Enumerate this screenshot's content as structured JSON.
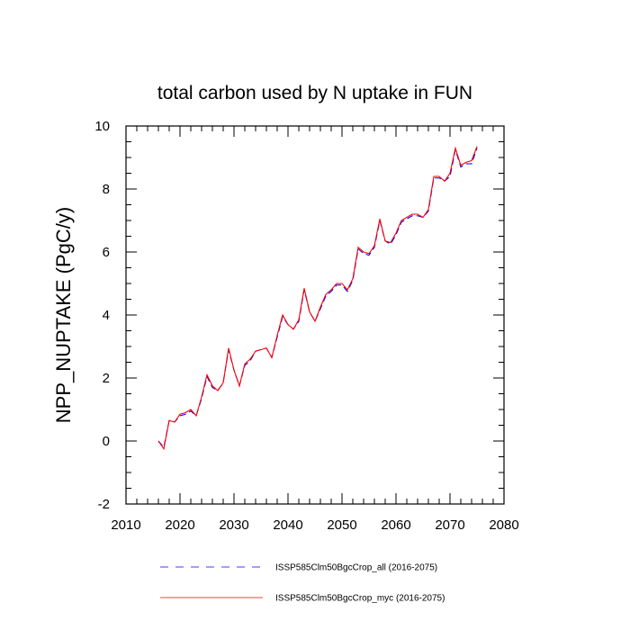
{
  "chart_data": {
    "type": "line",
    "title": "total carbon used by N uptake in FUN",
    "xlabel": "",
    "ylabel": "NPP_NUPTAKE  (PgC/y)",
    "xlim": [
      2010,
      2080
    ],
    "ylim": [
      -2,
      10
    ],
    "xticks": [
      "2010",
      "2020",
      "2030",
      "2040",
      "2050",
      "2060",
      "2070",
      "2080"
    ],
    "yticks": [
      "-2",
      "0",
      "2",
      "4",
      "6",
      "8",
      "10"
    ],
    "grid": false,
    "legend_position": "bottom",
    "x": [
      2016,
      2017,
      2018,
      2019,
      2020,
      2021,
      2022,
      2023,
      2024,
      2025,
      2026,
      2027,
      2028,
      2029,
      2030,
      2031,
      2032,
      2033,
      2034,
      2035,
      2036,
      2037,
      2038,
      2039,
      2040,
      2041,
      2042,
      2043,
      2044,
      2045,
      2046,
      2047,
      2048,
      2049,
      2050,
      2051,
      2052,
      2053,
      2054,
      2055,
      2056,
      2057,
      2058,
      2059,
      2060,
      2061,
      2062,
      2063,
      2064,
      2065,
      2066,
      2067,
      2068,
      2069,
      2070,
      2071,
      2072,
      2073,
      2074,
      2075
    ],
    "series": [
      {
        "name": "ISSP585Clm50BgcCrop_all (2016-2075)",
        "color": "#0000ff",
        "dash": "dashed",
        "values": [
          0.0,
          -0.2,
          0.65,
          0.6,
          0.8,
          0.85,
          0.95,
          0.8,
          1.35,
          2.05,
          1.7,
          1.6,
          1.85,
          2.9,
          2.25,
          1.75,
          2.4,
          2.55,
          2.85,
          2.9,
          2.95,
          2.65,
          3.3,
          3.95,
          3.7,
          3.55,
          3.8,
          4.8,
          4.1,
          3.8,
          4.2,
          4.6,
          4.75,
          4.95,
          4.95,
          4.75,
          5.1,
          6.1,
          5.95,
          5.9,
          6.15,
          7.0,
          6.35,
          6.25,
          6.55,
          6.95,
          7.05,
          7.15,
          7.15,
          7.1,
          7.3,
          8.35,
          8.35,
          8.25,
          8.4,
          9.25,
          8.7,
          8.8,
          8.8,
          9.3
        ]
      },
      {
        "name": "ISSP585Clm50BgcCrop_myc (2016-2075)",
        "color": "#ff0000",
        "dash": "solid",
        "values": [
          0.0,
          -0.25,
          0.65,
          0.6,
          0.85,
          0.9,
          1.0,
          0.8,
          1.4,
          2.1,
          1.75,
          1.6,
          1.85,
          2.95,
          2.25,
          1.75,
          2.45,
          2.6,
          2.85,
          2.9,
          2.95,
          2.65,
          3.35,
          4.0,
          3.7,
          3.55,
          3.85,
          4.85,
          4.1,
          3.8,
          4.25,
          4.65,
          4.8,
          5.0,
          5.0,
          4.8,
          5.15,
          6.15,
          6.0,
          5.95,
          6.2,
          7.05,
          6.35,
          6.3,
          6.6,
          7.0,
          7.1,
          7.2,
          7.2,
          7.1,
          7.35,
          8.4,
          8.4,
          8.25,
          8.5,
          9.3,
          8.75,
          8.85,
          8.9,
          9.35
        ]
      }
    ]
  }
}
